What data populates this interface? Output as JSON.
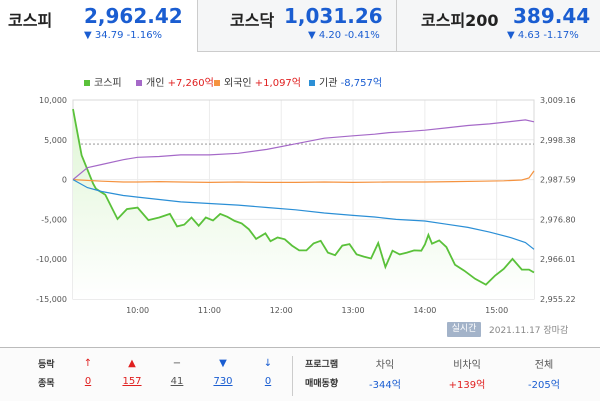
{
  "tabs": [
    {
      "name": "코스피",
      "value": "2,962.42",
      "change": "▼ 34.79  -1.16%",
      "active": true
    },
    {
      "name": "코스닥",
      "value": "1,031.26",
      "change": "▼ 4.20  -0.41%",
      "active": false
    },
    {
      "name": "코스피200",
      "value": "389.44",
      "change": "▼ 4.63  -1.17%",
      "active": false
    }
  ],
  "colors": {
    "up": "#e02020",
    "down": "#1a5dd1",
    "index_line": "#5ac13a",
    "index_fill": "#dff5d5",
    "individual": "#a569c8",
    "foreign": "#f59340",
    "institution": "#2b8fd6"
  },
  "chart_data": {
    "type": "line",
    "x_ticks": [
      "10:00",
      "11:00",
      "12:00",
      "13:00",
      "14:00",
      "15:00"
    ],
    "x_tick_pos": [
      1,
      2,
      3,
      4,
      5,
      6
    ],
    "x_range": [
      0.1,
      6.52
    ],
    "left_axis": {
      "ticks": [
        "10,000",
        "5,000",
        "0",
        "-5,000",
        "-10,000",
        "-15,000"
      ],
      "tick_values": [
        10000,
        5000,
        0,
        -5000,
        -10000,
        -15000
      ],
      "range": [
        -15000,
        10000
      ]
    },
    "right_axis": {
      "ticks": [
        "3,009.16",
        "2,998.38",
        "2,987.59",
        "2,976.80",
        "2,966.01",
        "2,955.22"
      ],
      "tick_values": [
        3009.16,
        2998.38,
        2987.59,
        2976.8,
        2966.01,
        2955.22
      ],
      "range": [
        2955.22,
        3009.16
      ]
    },
    "reference_line": 2997.21,
    "series": [
      {
        "name": "코스피",
        "legend": "코스피",
        "axis": "right",
        "color": "#5ac13a",
        "fill": true,
        "x": [
          0.1,
          0.22,
          0.38,
          0.42,
          0.55,
          0.65,
          0.72,
          0.85,
          1.0,
          1.15,
          1.3,
          1.45,
          1.55,
          1.65,
          1.75,
          1.85,
          1.95,
          2.05,
          2.15,
          2.25,
          2.35,
          2.45,
          2.55,
          2.65,
          2.78,
          2.85,
          2.95,
          3.05,
          3.15,
          3.25,
          3.35,
          3.45,
          3.55,
          3.65,
          3.75,
          3.85,
          3.95,
          4.05,
          4.15,
          4.25,
          4.35,
          4.45,
          4.55,
          4.65,
          4.75,
          4.85,
          4.95,
          5.0,
          5.05,
          5.1,
          5.2,
          5.3,
          5.42,
          5.55,
          5.7,
          5.85,
          5.98,
          6.1,
          6.22,
          6.35,
          6.45,
          6.52
        ],
        "values": [
          3006.7,
          2994.2,
          2986.5,
          2985.1,
          2983.5,
          2979.6,
          2976.9,
          2979.6,
          2980.0,
          2976.6,
          2977.3,
          2978.3,
          2974.9,
          2975.4,
          2977.3,
          2975.1,
          2977.3,
          2976.5,
          2978.3,
          2977.5,
          2976.4,
          2975.7,
          2974.1,
          2971.5,
          2973.0,
          2970.9,
          2971.9,
          2971.4,
          2969.7,
          2968.4,
          2968.4,
          2970.3,
          2971.0,
          2967.8,
          2967.1,
          2969.7,
          2970.1,
          2967.3,
          2966.7,
          2966.2,
          2970.4,
          2963.9,
          2968.3,
          2967.3,
          2967.8,
          2968.4,
          2968.3,
          2970.0,
          2972.6,
          2970.2,
          2971.1,
          2969.3,
          2964.5,
          2962.9,
          2960.7,
          2959.1,
          2961.6,
          2963.4,
          2966.1,
          2963.2,
          2963.2,
          2962.4
        ]
      },
      {
        "name": "개인",
        "legend": "개인 +7,260억",
        "axis": "left",
        "color": "#a569c8",
        "x": [
          0.1,
          0.3,
          0.5,
          0.8,
          1.0,
          1.3,
          1.6,
          2.0,
          2.4,
          2.8,
          3.2,
          3.6,
          4.0,
          4.3,
          4.5,
          4.7,
          5.0,
          5.3,
          5.6,
          5.9,
          6.2,
          6.4,
          6.52
        ],
        "values": [
          0,
          1500,
          1900,
          2500,
          2800,
          2900,
          3100,
          3100,
          3300,
          3800,
          4500,
          5200,
          5500,
          5700,
          5900,
          6000,
          6200,
          6500,
          6800,
          7000,
          7300,
          7500,
          7260
        ]
      },
      {
        "name": "외국인",
        "legend": "외국인 +1,097억",
        "axis": "left",
        "color": "#f59340",
        "x": [
          0.1,
          0.3,
          0.5,
          0.8,
          1.0,
          1.3,
          1.6,
          2.0,
          2.4,
          2.8,
          3.2,
          3.6,
          4.0,
          4.5,
          5.0,
          5.4,
          5.8,
          6.1,
          6.35,
          6.45,
          6.52
        ],
        "values": [
          0,
          -100,
          -200,
          -300,
          -300,
          -250,
          -300,
          -350,
          -300,
          -350,
          -350,
          -300,
          -350,
          -300,
          -300,
          -250,
          -200,
          -150,
          -50,
          200,
          1097
        ]
      },
      {
        "name": "기관",
        "legend": "기관 -8,757억",
        "axis": "left",
        "color": "#2b8fd6",
        "x": [
          0.1,
          0.3,
          0.5,
          0.8,
          1.0,
          1.3,
          1.6,
          2.0,
          2.4,
          2.8,
          3.2,
          3.6,
          4.0,
          4.3,
          4.6,
          5.0,
          5.3,
          5.6,
          5.9,
          6.2,
          6.4,
          6.52
        ],
        "values": [
          0,
          -1000,
          -1500,
          -2000,
          -2200,
          -2500,
          -2800,
          -3000,
          -3200,
          -3500,
          -3800,
          -4200,
          -4500,
          -4700,
          -5000,
          -5200,
          -5600,
          -6000,
          -6600,
          -7300,
          -7900,
          -8757
        ]
      }
    ]
  },
  "footer": {
    "live_label": "실시간",
    "stamp": "2021.11.17 장마감"
  },
  "breadth": {
    "label1": "등락",
    "label2": "종목",
    "items": [
      {
        "arrow": "↑",
        "count": "0",
        "color": "#e02020"
      },
      {
        "arrow": "▲",
        "count": "157",
        "color": "#e02020"
      },
      {
        "arrow": "−",
        "count": "41",
        "color": "#555555"
      },
      {
        "arrow": "▼",
        "count": "730",
        "color": "#1a5dd1"
      },
      {
        "arrow": "↓",
        "count": "0",
        "color": "#1a5dd1"
      }
    ]
  },
  "program": {
    "label1": "프로그램",
    "label2": "매매동향",
    "columns": [
      {
        "header": "차익",
        "value": "-344억",
        "color": "#1a5dd1"
      },
      {
        "header": "비차익",
        "value": "+139억",
        "color": "#e02020"
      },
      {
        "header": "전체",
        "value": "-205억",
        "color": "#1a5dd1"
      }
    ]
  }
}
